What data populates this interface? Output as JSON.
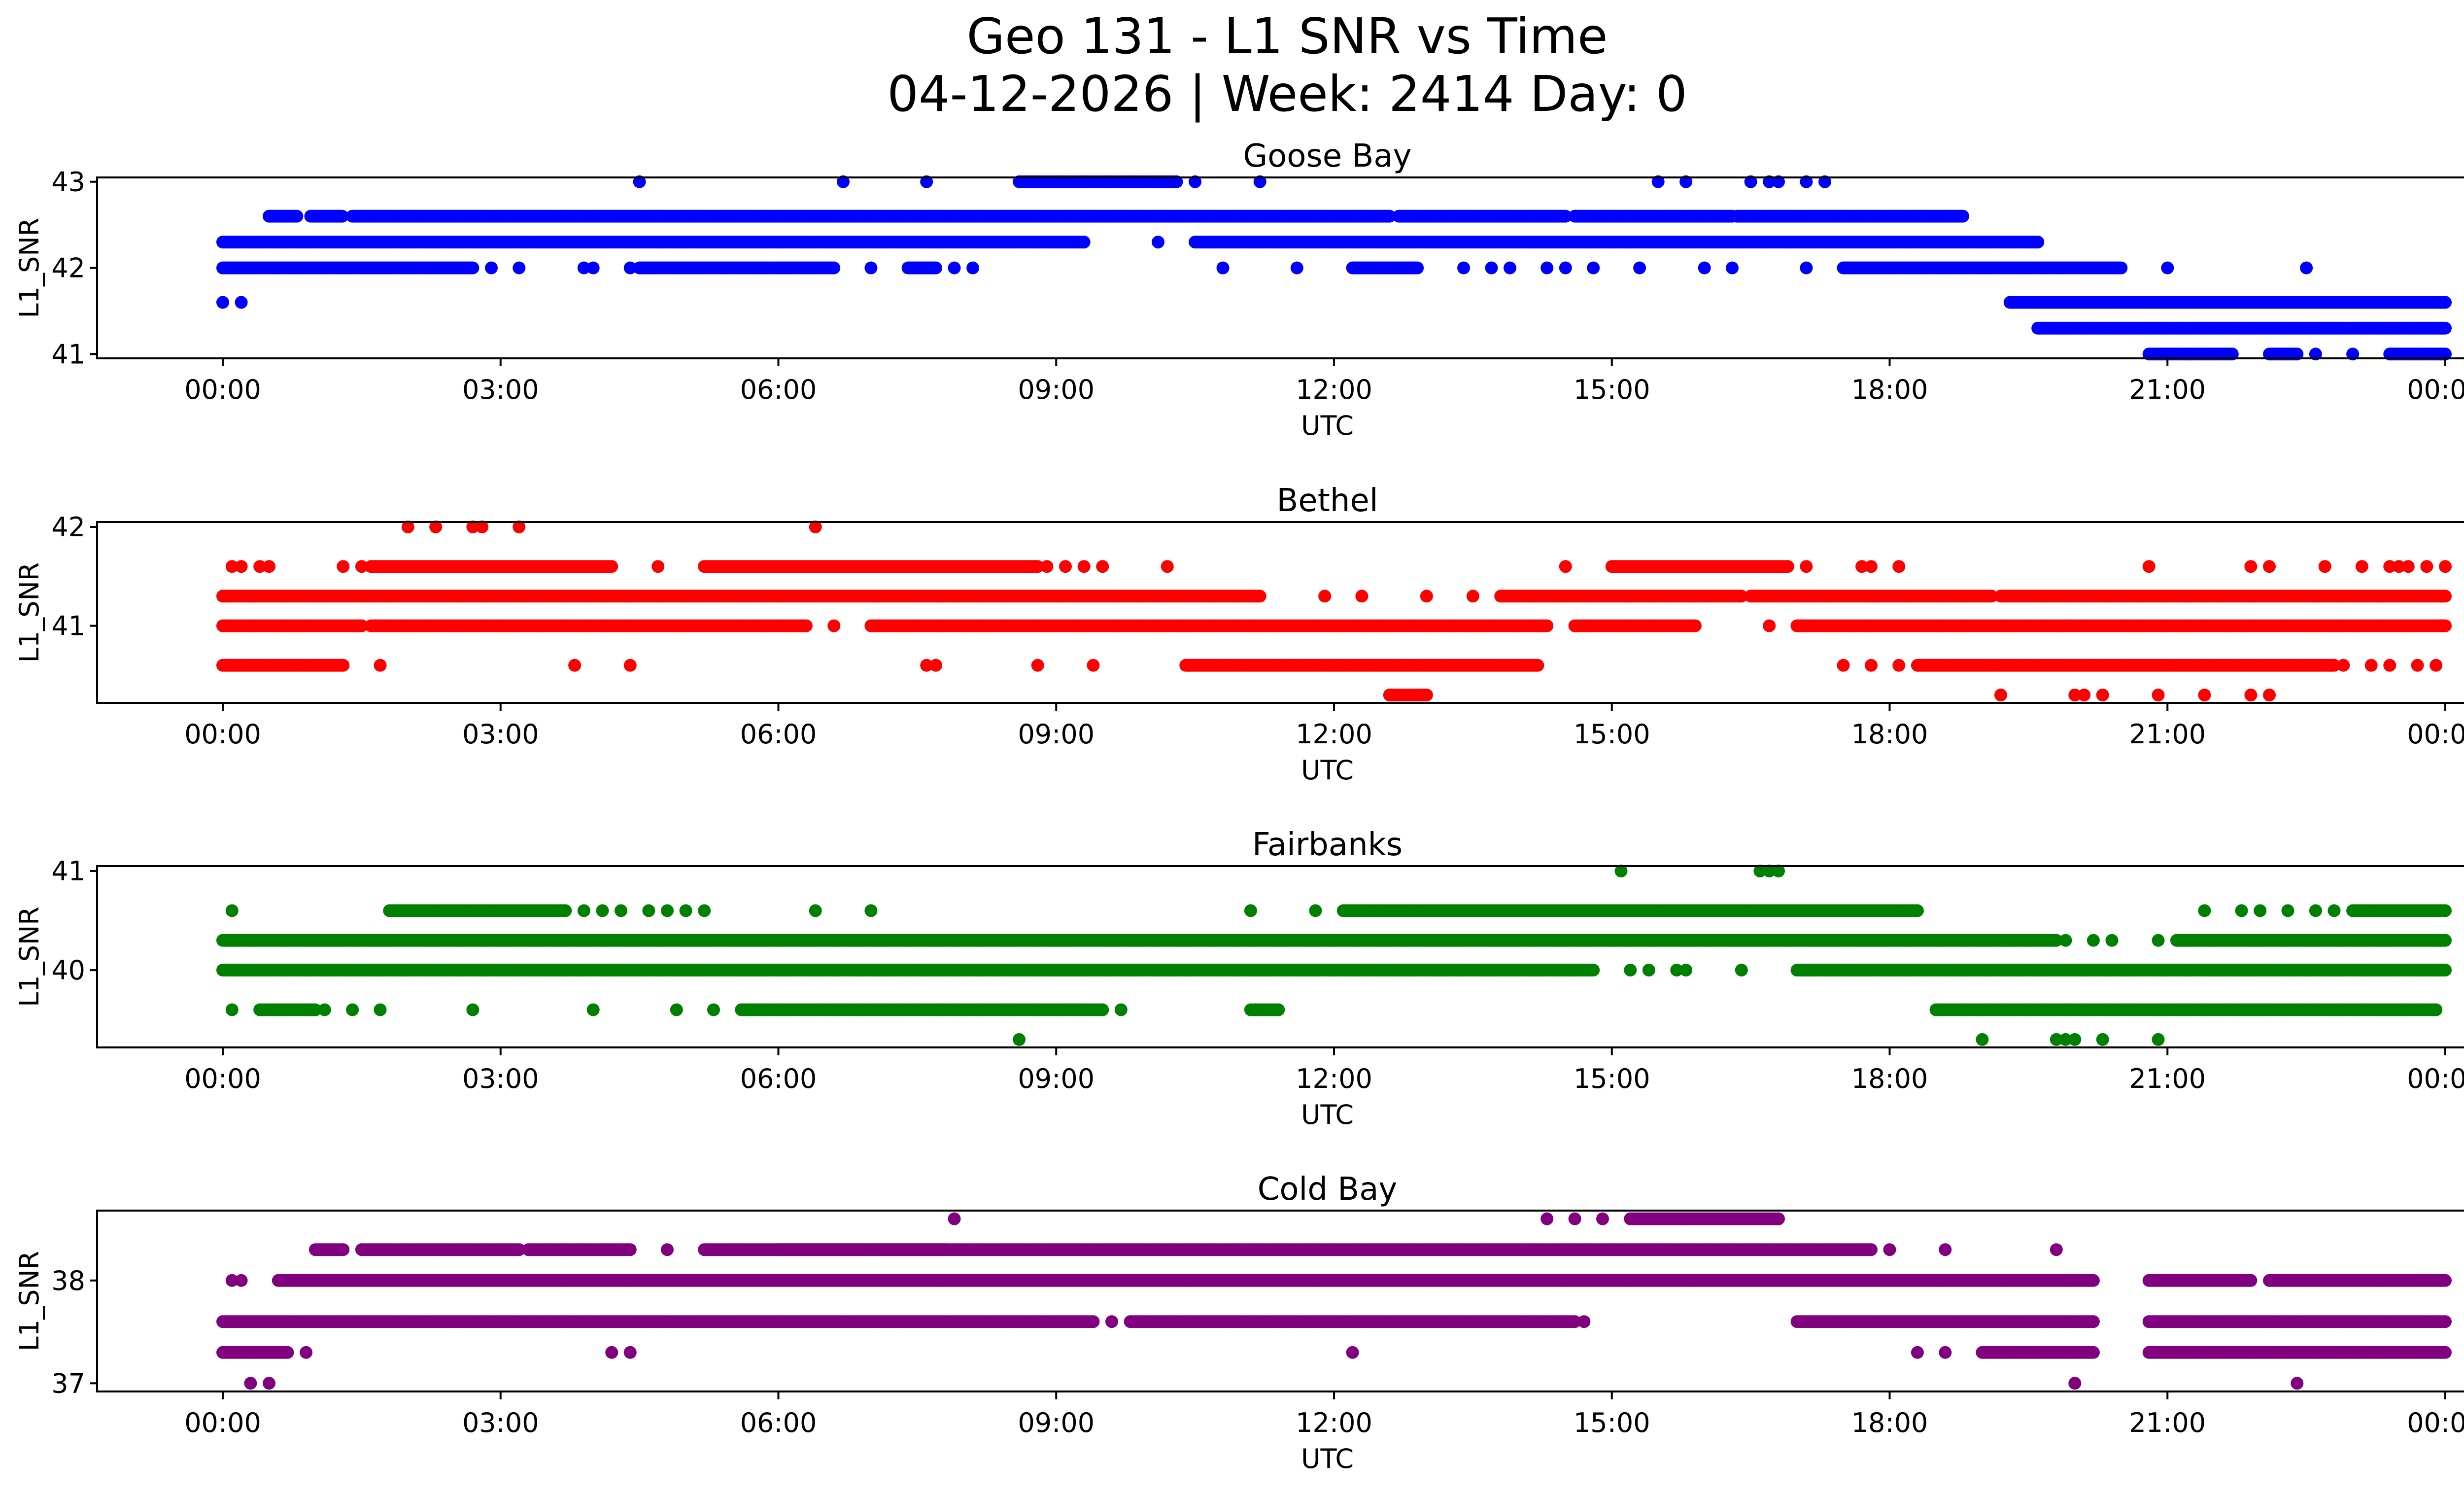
{
  "chart_data": {
    "type": "scatter",
    "title": "Geo 131 - L1 SNR vs Time",
    "subtitle": "04-12-2026 | Week: 2414 Day: 0",
    "xlabel": "UTC",
    "ylabel": "L1_SNR",
    "x_unit": "hours UTC",
    "xlim": [
      -0.4,
      26.3
    ],
    "xticks": [
      0,
      3,
      6,
      9,
      12,
      15,
      18,
      21,
      24
    ],
    "xtick_labels": [
      "00:00",
      "03:00",
      "06:00",
      "09:00",
      "12:00",
      "15:00",
      "18:00",
      "21:00",
      "00:00"
    ],
    "grid": false,
    "legend": "none",
    "panels": [
      {
        "title": "Goose Bay",
        "color": "#0000ff",
        "ylim": [
          40.95,
          43.05
        ],
        "yticks": [
          41,
          42,
          43
        ],
        "segments": [
          {
            "level": 43.0,
            "ranges": [
              [
                8.6,
                9.3
              ],
              [
                9.3,
                10.3
              ]
            ]
          },
          {
            "level": 42.6,
            "ranges": [
              [
                0.5,
                0.8
              ],
              [
                0.95,
                1.3
              ],
              [
                1.4,
                2.0
              ],
              [
                2.0,
                4.7
              ],
              [
                4.7,
                12.6
              ],
              [
                12.7,
                14.5
              ],
              [
                14.6,
                16.3
              ],
              [
                16.35,
                18.8
              ]
            ]
          },
          {
            "level": 42.3,
            "ranges": [
              [
                0.0,
                9.3
              ],
              [
                10.5,
                19.6
              ]
            ]
          },
          {
            "level": 42.0,
            "ranges": [
              [
                0.0,
                2.7
              ],
              [
                4.5,
                6.6
              ],
              [
                7.4,
                7.7
              ],
              [
                12.2,
                12.9
              ],
              [
                17.5,
                20.5
              ]
            ]
          },
          {
            "level": 41.6,
            "ranges": [
              [
                19.3,
                24.0
              ]
            ]
          },
          {
            "level": 41.3,
            "ranges": [
              [
                19.6,
                24.0
              ]
            ]
          },
          {
            "level": 41.0,
            "ranges": [
              [
                20.8,
                21.7
              ],
              [
                23.4,
                24.0
              ],
              [
                22.1,
                22.4
              ]
            ]
          }
        ],
        "points": [
          [
            4.5,
            43.0
          ],
          [
            6.7,
            43.0
          ],
          [
            7.6,
            43.0
          ],
          [
            10.5,
            43.0
          ],
          [
            11.2,
            43.0
          ],
          [
            15.5,
            43.0
          ],
          [
            15.8,
            43.0
          ],
          [
            16.5,
            43.0
          ],
          [
            16.7,
            43.0
          ],
          [
            16.8,
            43.0
          ],
          [
            17.1,
            43.0
          ],
          [
            17.3,
            43.0
          ],
          [
            9.3,
            42.3
          ],
          [
            10.1,
            42.3
          ],
          [
            2.9,
            42.0
          ],
          [
            3.2,
            42.0
          ],
          [
            3.9,
            42.0
          ],
          [
            4.0,
            42.0
          ],
          [
            4.4,
            42.0
          ],
          [
            7.0,
            42.0
          ],
          [
            7.9,
            42.0
          ],
          [
            8.1,
            42.0
          ],
          [
            10.8,
            42.0
          ],
          [
            11.6,
            42.0
          ],
          [
            13.4,
            42.0
          ],
          [
            13.7,
            42.0
          ],
          [
            13.9,
            42.0
          ],
          [
            14.3,
            42.0
          ],
          [
            14.5,
            42.0
          ],
          [
            14.8,
            42.0
          ],
          [
            15.3,
            42.0
          ],
          [
            16.0,
            42.0
          ],
          [
            16.3,
            42.0
          ],
          [
            17.1,
            42.0
          ],
          [
            21.0,
            42.0
          ],
          [
            22.5,
            42.0
          ],
          [
            0.0,
            41.6
          ],
          [
            0.2,
            41.6
          ],
          [
            22.6,
            41.0
          ],
          [
            23.0,
            41.0
          ]
        ]
      },
      {
        "title": "Bethel",
        "color": "#ff0000",
        "ylim": [
          40.22,
          42.05
        ],
        "yticks": [
          41,
          42
        ],
        "segments": [
          {
            "level": 41.6,
            "ranges": [
              [
                1.6,
                4.2
              ],
              [
                5.2,
                8.8
              ],
              [
                15.0,
                16.9
              ]
            ]
          },
          {
            "level": 41.3,
            "ranges": [
              [
                0.0,
                11.2
              ],
              [
                11.9,
                11.9
              ],
              [
                13.8,
                16.4
              ],
              [
                16.5,
                19.1
              ],
              [
                19.2,
                24.0
              ]
            ]
          },
          {
            "level": 41.0,
            "ranges": [
              [
                0.0,
                1.5
              ],
              [
                1.6,
                6.3
              ],
              [
                7.0,
                14.3
              ],
              [
                14.6,
                15.9
              ],
              [
                17.0,
                24.0
              ]
            ]
          },
          {
            "level": 40.6,
            "ranges": [
              [
                0.0,
                1.3
              ],
              [
                10.4,
                14.2
              ],
              [
                18.3,
                22.8
              ]
            ]
          },
          {
            "level": 40.3,
            "ranges": [
              [
                12.6,
                13.0
              ]
            ]
          }
        ],
        "points": [
          [
            2.0,
            42.0
          ],
          [
            2.3,
            42.0
          ],
          [
            2.7,
            42.0
          ],
          [
            2.8,
            42.0
          ],
          [
            3.2,
            42.0
          ],
          [
            6.4,
            42.0
          ],
          [
            0.1,
            41.6
          ],
          [
            0.2,
            41.6
          ],
          [
            0.4,
            41.6
          ],
          [
            0.5,
            41.6
          ],
          [
            1.3,
            41.6
          ],
          [
            1.5,
            41.6
          ],
          [
            4.7,
            41.6
          ],
          [
            8.9,
            41.6
          ],
          [
            9.1,
            41.6
          ],
          [
            9.3,
            41.6
          ],
          [
            9.5,
            41.6
          ],
          [
            10.2,
            41.6
          ],
          [
            14.5,
            41.6
          ],
          [
            17.1,
            41.6
          ],
          [
            17.7,
            41.6
          ],
          [
            17.8,
            41.6
          ],
          [
            18.1,
            41.6
          ],
          [
            20.8,
            41.6
          ],
          [
            21.9,
            41.6
          ],
          [
            22.1,
            41.6
          ],
          [
            22.7,
            41.6
          ],
          [
            23.1,
            41.6
          ],
          [
            23.4,
            41.6
          ],
          [
            23.5,
            41.6
          ],
          [
            23.6,
            41.6
          ],
          [
            23.8,
            41.6
          ],
          [
            24.0,
            41.6
          ],
          [
            12.3,
            41.3
          ],
          [
            13.0,
            41.3
          ],
          [
            13.5,
            41.3
          ],
          [
            16.7,
            41.0
          ],
          [
            17.0,
            41.0
          ],
          [
            6.6,
            41.0
          ],
          [
            1.7,
            40.6
          ],
          [
            3.8,
            40.6
          ],
          [
            4.4,
            40.6
          ],
          [
            7.6,
            40.6
          ],
          [
            7.7,
            40.6
          ],
          [
            8.8,
            40.6
          ],
          [
            9.4,
            40.6
          ],
          [
            17.5,
            40.6
          ],
          [
            17.8,
            40.6
          ],
          [
            18.1,
            40.6
          ],
          [
            22.9,
            40.6
          ],
          [
            23.2,
            40.6
          ],
          [
            23.4,
            40.6
          ],
          [
            23.7,
            40.6
          ],
          [
            23.9,
            40.6
          ],
          [
            19.2,
            40.3
          ],
          [
            20.0,
            40.3
          ],
          [
            20.1,
            40.3
          ],
          [
            20.3,
            40.3
          ],
          [
            20.9,
            40.3
          ],
          [
            21.4,
            40.3
          ],
          [
            21.9,
            40.3
          ],
          [
            22.1,
            40.3
          ]
        ]
      },
      {
        "title": "Fairbanks",
        "color": "#008000",
        "ylim": [
          39.22,
          41.05
        ],
        "yticks": [
          40,
          41
        ],
        "segments": [
          {
            "level": 40.6,
            "ranges": [
              [
                1.8,
                3.7
              ],
              [
                12.1,
                18.3
              ],
              [
                23.0,
                24.0
              ]
            ]
          },
          {
            "level": 40.3,
            "ranges": [
              [
                0.0,
                19.8
              ],
              [
                21.1,
                24.0
              ]
            ]
          },
          {
            "level": 40.0,
            "ranges": [
              [
                0.0,
                14.8
              ],
              [
                17.0,
                24.0
              ]
            ]
          },
          {
            "level": 39.6,
            "ranges": [
              [
                0.4,
                1.0
              ],
              [
                5.6,
                9.5
              ],
              [
                11.1,
                11.4
              ],
              [
                18.5,
                23.9
              ]
            ]
          }
        ],
        "points": [
          [
            15.1,
            41.0
          ],
          [
            16.6,
            41.0
          ],
          [
            16.7,
            41.0
          ],
          [
            16.8,
            41.0
          ],
          [
            0.1,
            40.6
          ],
          [
            3.9,
            40.6
          ],
          [
            4.1,
            40.6
          ],
          [
            4.3,
            40.6
          ],
          [
            4.6,
            40.6
          ],
          [
            4.8,
            40.6
          ],
          [
            5.0,
            40.6
          ],
          [
            5.2,
            40.6
          ],
          [
            6.4,
            40.6
          ],
          [
            7.0,
            40.6
          ],
          [
            11.1,
            40.6
          ],
          [
            11.8,
            40.6
          ],
          [
            21.4,
            40.6
          ],
          [
            21.8,
            40.6
          ],
          [
            22.0,
            40.6
          ],
          [
            22.3,
            40.6
          ],
          [
            22.6,
            40.6
          ],
          [
            22.8,
            40.6
          ],
          [
            19.9,
            40.3
          ],
          [
            20.2,
            40.3
          ],
          [
            20.4,
            40.3
          ],
          [
            20.9,
            40.3
          ],
          [
            2.4,
            40.0
          ],
          [
            4.9,
            40.0
          ],
          [
            15.2,
            40.0
          ],
          [
            15.4,
            40.0
          ],
          [
            15.7,
            40.0
          ],
          [
            15.8,
            40.0
          ],
          [
            16.4,
            40.0
          ],
          [
            0.1,
            39.6
          ],
          [
            1.1,
            39.6
          ],
          [
            1.4,
            39.6
          ],
          [
            1.7,
            39.6
          ],
          [
            2.7,
            39.6
          ],
          [
            4.0,
            39.6
          ],
          [
            4.9,
            39.6
          ],
          [
            5.3,
            39.6
          ],
          [
            9.7,
            39.6
          ],
          [
            8.6,
            39.3
          ],
          [
            19.0,
            39.3
          ],
          [
            19.8,
            39.3
          ],
          [
            19.9,
            39.3
          ],
          [
            20.0,
            39.3
          ],
          [
            20.3,
            39.3
          ],
          [
            20.9,
            39.3
          ]
        ]
      },
      {
        "title": "Cold Bay",
        "color": "#800080",
        "ylim": [
          36.92,
          38.68
        ],
        "yticks": [
          37,
          38
        ],
        "segments": [
          {
            "level": 38.6,
            "ranges": [
              [
                15.2,
                16.8
              ]
            ]
          },
          {
            "level": 38.3,
            "ranges": [
              [
                1.0,
                1.3
              ],
              [
                1.5,
                3.2
              ],
              [
                3.3,
                4.4
              ],
              [
                5.2,
                7.8
              ],
              [
                6.0,
                17.8
              ]
            ]
          },
          {
            "level": 38.0,
            "ranges": [
              [
                0.6,
                20.2
              ],
              [
                20.8,
                21.9
              ],
              [
                22.1,
                24.0
              ]
            ]
          },
          {
            "level": 37.6,
            "ranges": [
              [
                0.0,
                9.4
              ],
              [
                9.8,
                14.6
              ],
              [
                17.0,
                20.2
              ],
              [
                20.8,
                24.0
              ]
            ]
          },
          {
            "level": 37.3,
            "ranges": [
              [
                0.0,
                0.7
              ],
              [
                19.0,
                20.2
              ],
              [
                20.8,
                24.0
              ]
            ]
          }
        ],
        "points": [
          [
            7.9,
            38.6
          ],
          [
            14.3,
            38.6
          ],
          [
            14.6,
            38.6
          ],
          [
            14.9,
            38.6
          ],
          [
            4.8,
            38.3
          ],
          [
            18.0,
            38.3
          ],
          [
            18.6,
            38.3
          ],
          [
            19.8,
            38.3
          ],
          [
            0.1,
            38.0
          ],
          [
            0.2,
            38.0
          ],
          [
            9.6,
            37.6
          ],
          [
            14.7,
            37.6
          ],
          [
            0.9,
            37.3
          ],
          [
            4.2,
            37.3
          ],
          [
            4.4,
            37.3
          ],
          [
            12.2,
            37.3
          ],
          [
            18.3,
            37.3
          ],
          [
            18.6,
            37.3
          ],
          [
            0.3,
            37.0
          ],
          [
            0.5,
            37.0
          ],
          [
            20.0,
            37.0
          ],
          [
            22.4,
            37.0
          ]
        ]
      }
    ]
  }
}
